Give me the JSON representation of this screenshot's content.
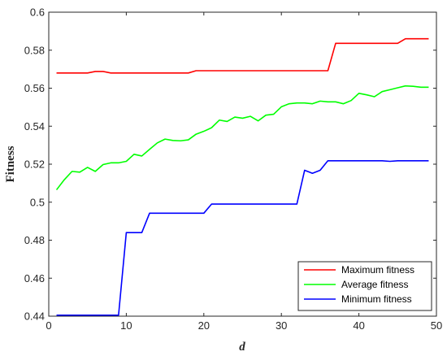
{
  "chart_data": {
    "type": "line",
    "xlabel": "d",
    "ylabel": "Fitness",
    "xlim": [
      0,
      50
    ],
    "ylim": [
      0.44,
      0.6
    ],
    "xticks": [
      0,
      10,
      20,
      30,
      40,
      50
    ],
    "yticks": [
      0.44,
      0.46,
      0.48,
      0.5,
      0.52,
      0.54,
      0.56,
      0.58,
      0.6
    ],
    "ytick_labels": [
      "0.44",
      "0.46",
      "0.48",
      "0.5",
      "0.52",
      "0.54",
      "0.56",
      "0.58",
      "0.6"
    ],
    "grid": false,
    "legend_position": "bottom-right",
    "x": [
      1,
      2,
      3,
      4,
      5,
      6,
      7,
      8,
      9,
      10,
      11,
      12,
      13,
      14,
      15,
      16,
      17,
      18,
      19,
      20,
      21,
      22,
      23,
      24,
      25,
      26,
      27,
      28,
      29,
      30,
      31,
      32,
      33,
      34,
      35,
      36,
      37,
      38,
      39,
      40,
      41,
      42,
      43,
      44,
      45,
      46,
      47,
      48,
      49
    ],
    "series": [
      {
        "name": "Maximum fitness",
        "color": "#ff0000",
        "values": [
          0.568,
          0.568,
          0.568,
          0.568,
          0.568,
          0.5688,
          0.5688,
          0.568,
          0.568,
          0.568,
          0.568,
          0.568,
          0.568,
          0.568,
          0.568,
          0.568,
          0.568,
          0.568,
          0.5692,
          0.5692,
          0.5692,
          0.5692,
          0.5692,
          0.5692,
          0.5692,
          0.5692,
          0.5692,
          0.5692,
          0.5692,
          0.5692,
          0.5692,
          0.5692,
          0.5692,
          0.5692,
          0.5692,
          0.5692,
          0.5836,
          0.5836,
          0.5836,
          0.5836,
          0.5836,
          0.5836,
          0.5836,
          0.5836,
          0.5836,
          0.586,
          0.586,
          0.586,
          0.586
        ]
      },
      {
        "name": "Average fitness",
        "color": "#00ff00",
        "values": [
          0.5065,
          0.5118,
          0.5162,
          0.5158,
          0.5183,
          0.5162,
          0.5198,
          0.5207,
          0.5207,
          0.5215,
          0.5252,
          0.5243,
          0.5278,
          0.5312,
          0.5332,
          0.5325,
          0.5323,
          0.5328,
          0.5358,
          0.5373,
          0.5392,
          0.5432,
          0.5425,
          0.5448,
          0.5442,
          0.5452,
          0.5428,
          0.5458,
          0.5463,
          0.5502,
          0.5518,
          0.5522,
          0.5522,
          0.5518,
          0.5532,
          0.5528,
          0.5528,
          0.5518,
          0.5535,
          0.5573,
          0.5565,
          0.5555,
          0.5582,
          0.5592,
          0.5602,
          0.5612,
          0.561,
          0.5605,
          0.5605
        ]
      },
      {
        "name": "Minimum fitness",
        "color": "#0000ff",
        "values": [
          0.4405,
          0.4405,
          0.4405,
          0.4405,
          0.4405,
          0.4405,
          0.4405,
          0.4405,
          0.4405,
          0.484,
          0.484,
          0.484,
          0.4942,
          0.4942,
          0.4942,
          0.4942,
          0.4942,
          0.4942,
          0.4942,
          0.4942,
          0.499,
          0.499,
          0.499,
          0.499,
          0.499,
          0.499,
          0.499,
          0.499,
          0.499,
          0.499,
          0.499,
          0.499,
          0.5168,
          0.5152,
          0.5168,
          0.5218,
          0.5218,
          0.5218,
          0.5218,
          0.5218,
          0.5218,
          0.5218,
          0.5218,
          0.5215,
          0.5218,
          0.5218,
          0.5218,
          0.5218,
          0.5218
        ]
      }
    ]
  }
}
